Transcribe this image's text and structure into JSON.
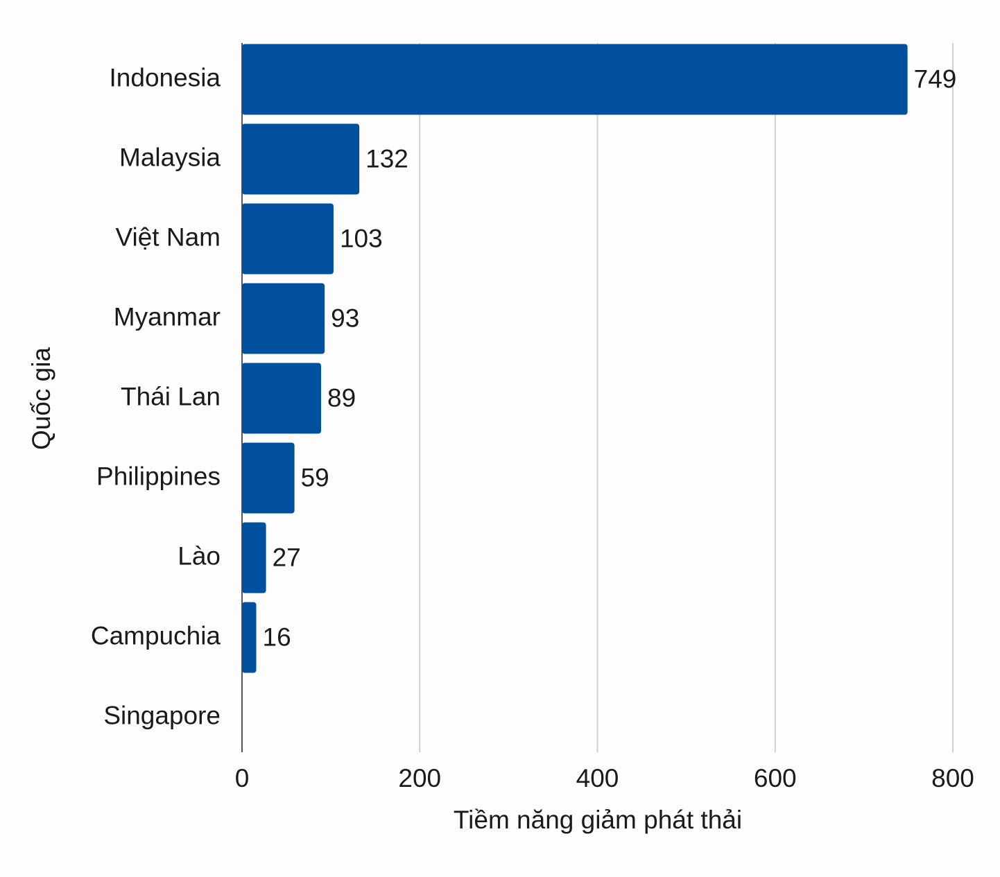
{
  "chart_data": {
    "type": "bar",
    "orientation": "horizontal",
    "x_label": "Tiềm năng giảm phát thải",
    "y_label": "Quốc gia",
    "categories": [
      "Indonesia",
      "Malaysia",
      "Việt Nam",
      "Myanmar",
      "Thái Lan",
      "Philippines",
      "Lào",
      "Campuchia",
      "Singapore"
    ],
    "values": [
      749,
      132,
      103,
      93,
      89,
      59,
      27,
      16,
      null
    ],
    "color": "#0050a0",
    "xlim": [
      0,
      800
    ],
    "xticks": [
      0,
      200,
      400,
      600,
      800
    ],
    "grid": true
  }
}
